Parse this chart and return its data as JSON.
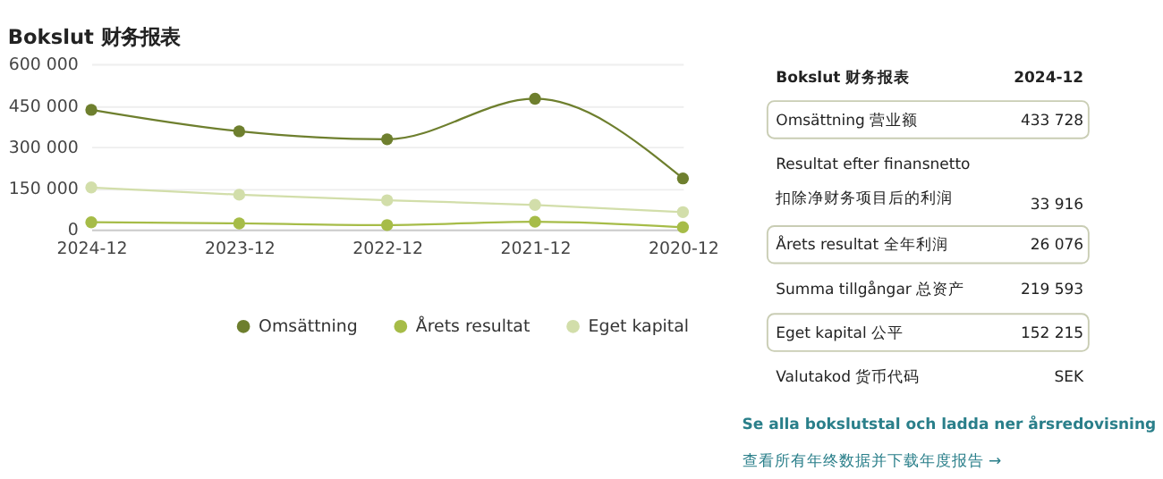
{
  "chart_data": [
    {
      "type": "line",
      "title": "Bokslut 财务报表",
      "categories": [
        "2024-12",
        "2023-12",
        "2022-12",
        "2021-12",
        "2020-12"
      ],
      "series": [
        {
          "name": "Omsättning",
          "color": "#6e7f2e",
          "values": [
            433728,
            356000,
            327000,
            474000,
            185000
          ]
        },
        {
          "name": "Årets resultat",
          "color": "#a6bc48",
          "values": [
            26076,
            22000,
            16000,
            28000,
            8000
          ]
        },
        {
          "name": "Eget kapital",
          "color": "#d2deaa",
          "values": [
            152215,
            126000,
            106000,
            89000,
            63000
          ]
        }
      ],
      "ylim": [
        0,
        600000
      ],
      "yticks": [
        {
          "value": 0,
          "label": "0"
        },
        {
          "value": 150000,
          "label": "150 000"
        },
        {
          "value": 300000,
          "label": "300 000"
        },
        {
          "value": 450000,
          "label": "450 000"
        },
        {
          "value": 600000,
          "label": "600 000"
        }
      ],
      "grid": "y",
      "legend": "bottom",
      "marker": "circle",
      "line_style": "solid"
    },
    {
      "type": "other",
      "categories": [
        "Bokslut 财务报表",
        "Omsättning 营业额",
        "Resultat efter finansnetto\n扣除净财务项目后的利润",
        "Årets resultat 全年利润",
        "Summa tillgångar 总资产",
        "Eget kapital 公平",
        "Valutakod 货币代码"
      ],
      "value_labels": [
        "2024-12",
        "433 728",
        "33 916",
        "26 076",
        "219 593",
        "152 215",
        "SEK"
      ],
      "colors": [
        null,
        "#c9cdb4",
        null,
        "#c9cdb4",
        null,
        "#c9cdb4",
        null
      ],
      "annotations": [
        "Se alla bokslutstal och ladda ner årsredovisning",
        "查看所有年终数据并下载年度报告 →"
      ]
    }
  ]
}
